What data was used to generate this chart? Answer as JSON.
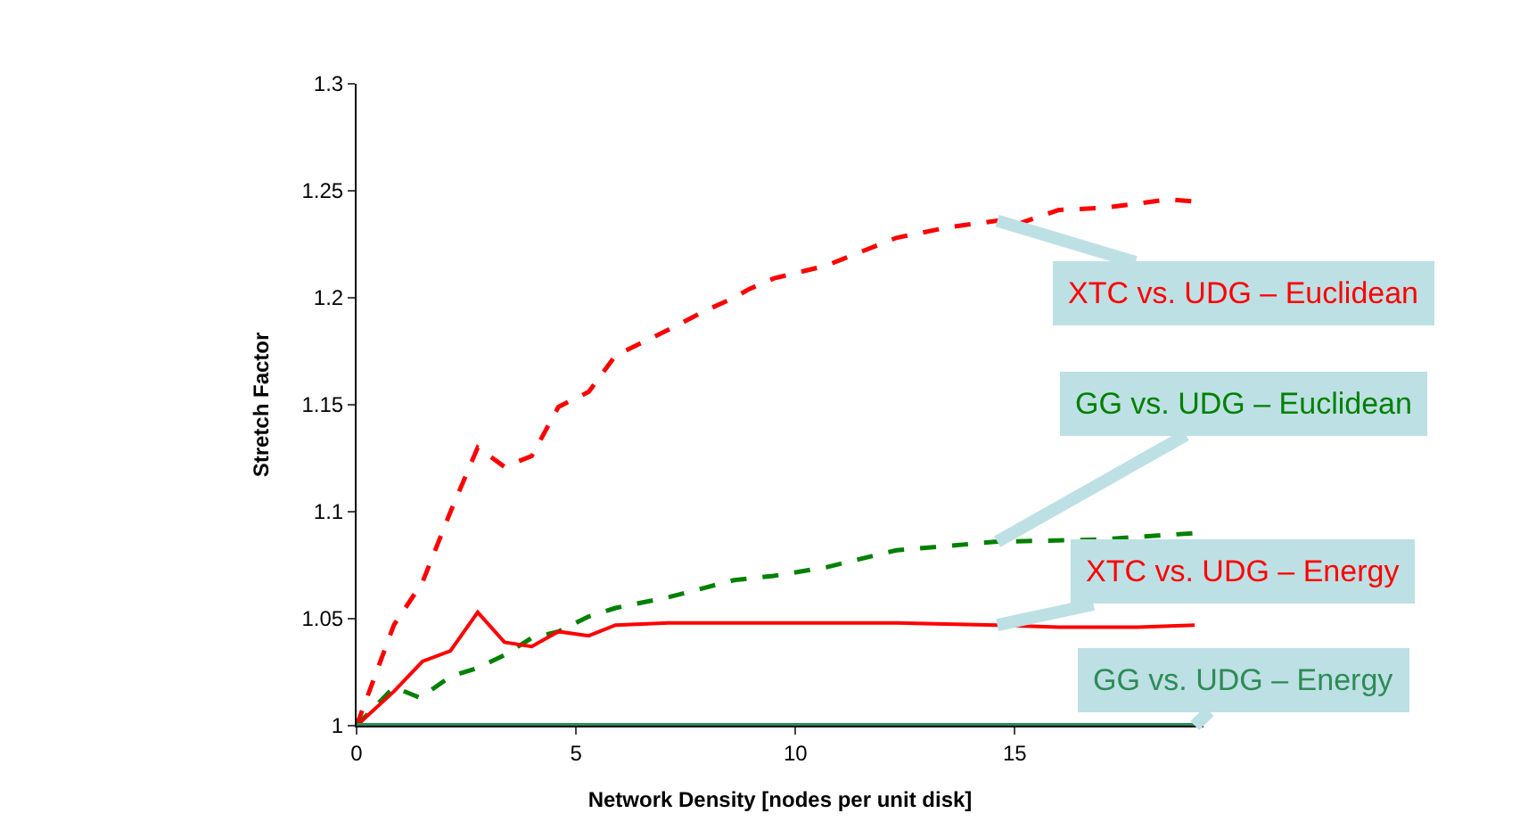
{
  "chart_data": {
    "type": "line",
    "xlabel": "Network Density [nodes per unit disk]",
    "ylabel": "Stretch Factor",
    "xlim": [
      0,
      19.3
    ],
    "xticks": [
      0,
      5,
      10,
      15
    ],
    "ylim": [
      1,
      1.3
    ],
    "yticks": [
      1,
      1.05,
      1.1,
      1.15,
      1.2,
      1.25,
      1.3
    ],
    "legend": false,
    "marker": "none",
    "series": [
      {
        "name": "XTC vs. UDG – Euclidean",
        "color": "#ff0000",
        "line_style": "dashed",
        "x": [
          0,
          0.85,
          1.5,
          2.14,
          2.76,
          3.37,
          3.99,
          4.6,
          5.29,
          5.9,
          6.6,
          7.1,
          7.95,
          8.6,
          8.94,
          9.5,
          10.7,
          12.3,
          13.5,
          14.6,
          15.0,
          16.0,
          17.0,
          17.8,
          18.5,
          19.1
        ],
        "values": [
          1.0,
          1.047,
          1.067,
          1.1,
          1.13,
          1.121,
          1.126,
          1.149,
          1.156,
          1.173,
          1.18,
          1.185,
          1.194,
          1.2,
          1.204,
          1.209,
          1.215,
          1.228,
          1.233,
          1.236,
          1.234,
          1.241,
          1.242,
          1.244,
          1.246,
          1.245
        ]
      },
      {
        "name": "GG vs. UDG – Euclidean",
        "color": "#008000",
        "line_style": "dashed",
        "x": [
          0,
          0.85,
          1.45,
          2.14,
          2.76,
          3.37,
          3.99,
          4.6,
          5.29,
          5.9,
          7.1,
          8.6,
          9.5,
          10.7,
          12.3,
          14.6,
          16.9,
          19.1
        ],
        "values": [
          1.0,
          1.018,
          1.013,
          1.023,
          1.027,
          1.033,
          1.041,
          1.044,
          1.051,
          1.055,
          1.06,
          1.068,
          1.07,
          1.074,
          1.082,
          1.086,
          1.087,
          1.09
        ]
      },
      {
        "name": "XTC vs. UDG – Energy",
        "color": "#ff0000",
        "line_style": "solid",
        "x": [
          0,
          0.85,
          1.5,
          2.14,
          2.76,
          3.37,
          3.99,
          4.6,
          5.29,
          5.9,
          7.1,
          8.6,
          10.7,
          12.3,
          14.6,
          16.0,
          17.8,
          19.1
        ],
        "values": [
          1.0,
          1.016,
          1.03,
          1.035,
          1.053,
          1.039,
          1.037,
          1.044,
          1.042,
          1.047,
          1.048,
          1.048,
          1.048,
          1.048,
          1.047,
          1.046,
          1.046,
          1.047
        ]
      },
      {
        "name": "GG vs. UDG – Energy",
        "color": "#2e8b57",
        "line_style": "solid",
        "x": [
          0,
          19.1
        ],
        "values": [
          1.0,
          1.0
        ]
      }
    ]
  }
}
